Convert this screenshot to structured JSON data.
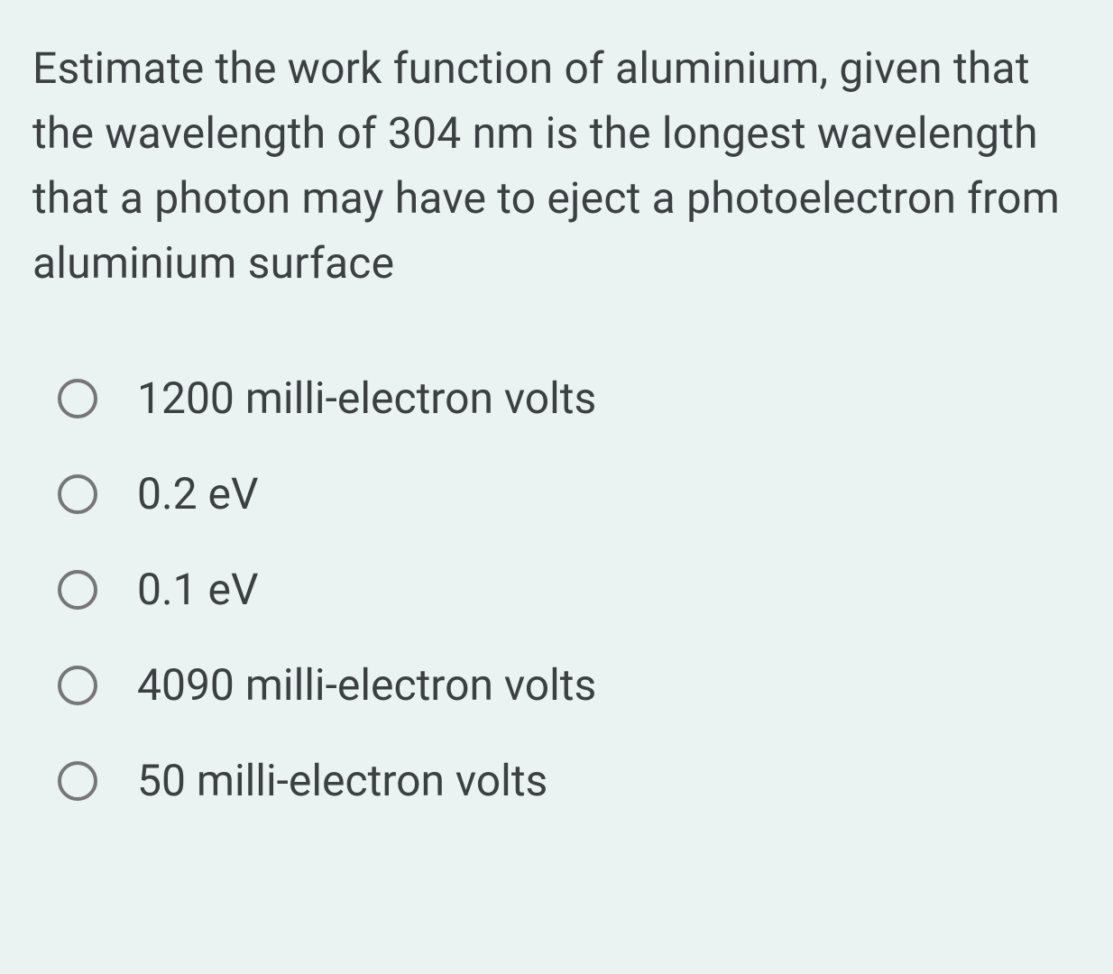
{
  "background_color": "#eaf2f2",
  "text_color": "#3c4043",
  "radio_border_color": "#767676",
  "question": {
    "text": "Estimate the work function of aluminium, given that the wavelength of 304 nm is the longest wavelength that a photon may have to eject a photoelectron from aluminium surface",
    "fontsize": 48,
    "line_height": 1.5
  },
  "options": [
    {
      "label": "1200 milli-electron volts",
      "selected": false
    },
    {
      "label": "0.2 eV",
      "selected": false
    },
    {
      "label": "0.1 eV",
      "selected": false
    },
    {
      "label": "4090 milli-electron volts",
      "selected": false
    },
    {
      "label": "50 milli-electron volts",
      "selected": false
    }
  ],
  "option_fontsize": 48,
  "radio_size": 44,
  "radio_border_width": 4
}
